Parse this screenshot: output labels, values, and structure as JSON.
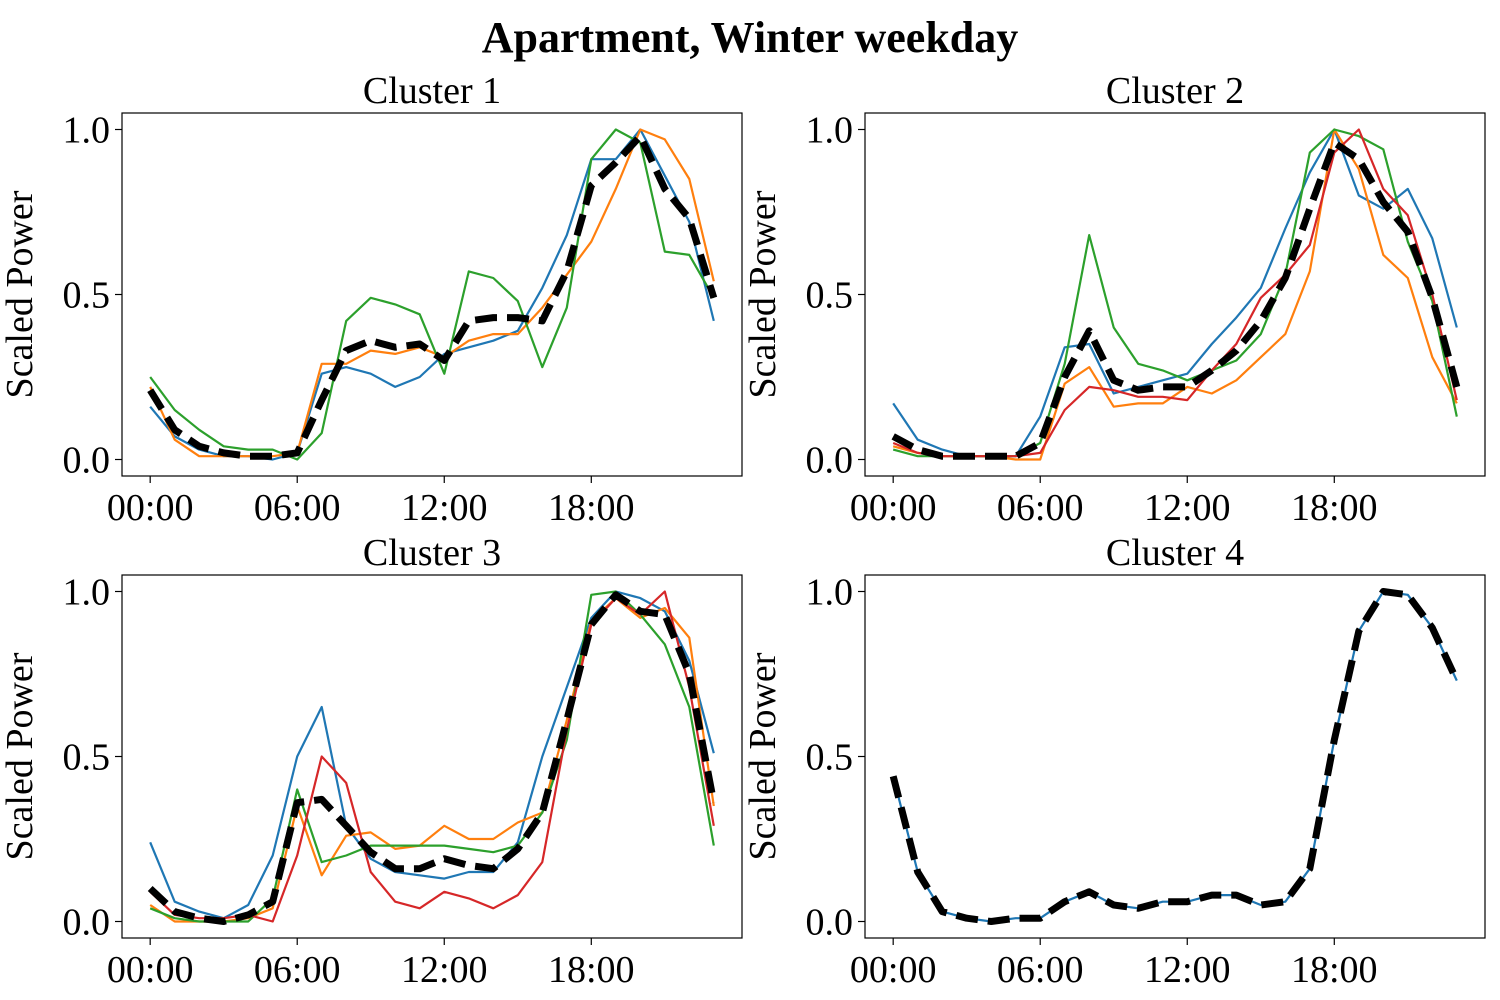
{
  "chart_data": {
    "title": "Apartment, Winter weekday",
    "type": "line",
    "ylabel": "Scaled Power",
    "x_hours": [
      0,
      1,
      2,
      3,
      4,
      5,
      6,
      7,
      8,
      9,
      10,
      11,
      12,
      13,
      14,
      15,
      16,
      17,
      18,
      19,
      20,
      21,
      22,
      23
    ],
    "xticks": [
      {
        "hour": 0,
        "label": "00:00"
      },
      {
        "hour": 6,
        "label": "06:00"
      },
      {
        "hour": 12,
        "label": "12:00"
      },
      {
        "hour": 18,
        "label": "18:00"
      }
    ],
    "yticks": [
      {
        "value": 0.0,
        "label": "0.0"
      },
      {
        "value": 0.5,
        "label": "0.5"
      },
      {
        "value": 1.0,
        "label": "1.0"
      }
    ],
    "ylim": [
      -0.05,
      1.05
    ],
    "xlim": [
      -1.15,
      24.15
    ],
    "grid": false,
    "panels": [
      {
        "title": "Cluster 1",
        "series": [
          {
            "color": "#1f77b4",
            "values": [
              0.16,
              0.07,
              0.03,
              0.01,
              0.01,
              0.0,
              0.02,
              0.26,
              0.28,
              0.26,
              0.22,
              0.25,
              0.32,
              0.34,
              0.36,
              0.39,
              0.52,
              0.68,
              0.91,
              0.91,
              1.0,
              0.86,
              0.72,
              0.42
            ]
          },
          {
            "color": "#ff7f0e",
            "values": [
              0.22,
              0.06,
              0.01,
              0.01,
              0.01,
              0.01,
              0.02,
              0.29,
              0.29,
              0.33,
              0.32,
              0.34,
              0.31,
              0.36,
              0.38,
              0.38,
              0.46,
              0.56,
              0.66,
              0.82,
              1.0,
              0.97,
              0.85,
              0.54
            ]
          },
          {
            "color": "#2ca02c",
            "values": [
              0.25,
              0.15,
              0.09,
              0.04,
              0.03,
              0.03,
              0.0,
              0.08,
              0.42,
              0.49,
              0.47,
              0.44,
              0.26,
              0.57,
              0.55,
              0.48,
              0.28,
              0.46,
              0.91,
              1.0,
              0.96,
              0.63,
              0.62,
              0.49
            ]
          }
        ],
        "mean": [
          0.21,
          0.09,
          0.04,
          0.02,
          0.01,
          0.01,
          0.02,
          0.18,
          0.33,
          0.36,
          0.34,
          0.35,
          0.3,
          0.42,
          0.43,
          0.43,
          0.42,
          0.57,
          0.83,
          0.9,
          0.98,
          0.82,
          0.73,
          0.49
        ]
      },
      {
        "title": "Cluster 2",
        "series": [
          {
            "color": "#1f77b4",
            "values": [
              0.17,
              0.06,
              0.03,
              0.01,
              0.01,
              0.01,
              0.13,
              0.34,
              0.35,
              0.2,
              0.22,
              0.24,
              0.26,
              0.35,
              0.43,
              0.52,
              0.7,
              0.87,
              1.0,
              0.8,
              0.76,
              0.82,
              0.67,
              0.4
            ]
          },
          {
            "color": "#ff7f0e",
            "values": [
              0.04,
              0.02,
              0.01,
              0.01,
              0.01,
              0.0,
              0.0,
              0.23,
              0.28,
              0.16,
              0.17,
              0.17,
              0.22,
              0.2,
              0.24,
              0.31,
              0.38,
              0.57,
              1.0,
              0.88,
              0.62,
              0.55,
              0.31,
              0.17
            ]
          },
          {
            "color": "#2ca02c",
            "values": [
              0.03,
              0.01,
              0.01,
              0.01,
              0.01,
              0.01,
              0.05,
              0.29,
              0.68,
              0.4,
              0.29,
              0.27,
              0.24,
              0.27,
              0.3,
              0.38,
              0.56,
              0.93,
              1.0,
              0.98,
              0.94,
              0.66,
              0.48,
              0.13
            ]
          },
          {
            "color": "#d62728",
            "values": [
              0.05,
              0.02,
              0.01,
              0.01,
              0.01,
              0.01,
              0.02,
              0.15,
              0.22,
              0.21,
              0.19,
              0.19,
              0.18,
              0.27,
              0.35,
              0.49,
              0.56,
              0.65,
              0.93,
              1.0,
              0.82,
              0.74,
              0.5,
              0.18
            ]
          }
        ],
        "mean": [
          0.07,
          0.03,
          0.01,
          0.01,
          0.01,
          0.01,
          0.05,
          0.25,
          0.39,
          0.24,
          0.21,
          0.22,
          0.22,
          0.27,
          0.33,
          0.42,
          0.55,
          0.76,
          0.96,
          0.91,
          0.78,
          0.69,
          0.49,
          0.22
        ]
      },
      {
        "title": "Cluster 3",
        "series": [
          {
            "color": "#1f77b4",
            "values": [
              0.24,
              0.06,
              0.03,
              0.01,
              0.05,
              0.2,
              0.5,
              0.65,
              0.29,
              0.19,
              0.15,
              0.14,
              0.13,
              0.15,
              0.15,
              0.24,
              0.5,
              0.71,
              0.92,
              1.0,
              0.98,
              0.94,
              0.79,
              0.51
            ]
          },
          {
            "color": "#ff7f0e",
            "values": [
              0.05,
              0.0,
              0.0,
              0.0,
              0.01,
              0.04,
              0.35,
              0.14,
              0.26,
              0.27,
              0.22,
              0.23,
              0.29,
              0.25,
              0.25,
              0.3,
              0.33,
              0.61,
              0.91,
              0.98,
              0.92,
              0.95,
              0.86,
              0.35
            ]
          },
          {
            "color": "#2ca02c",
            "values": [
              0.04,
              0.01,
              0.0,
              0.0,
              0.0,
              0.07,
              0.4,
              0.18,
              0.2,
              0.23,
              0.23,
              0.23,
              0.23,
              0.22,
              0.21,
              0.23,
              0.33,
              0.55,
              0.99,
              1.0,
              0.93,
              0.84,
              0.65,
              0.23
            ]
          },
          {
            "color": "#d62728",
            "values": [
              0.09,
              0.02,
              0.01,
              0.01,
              0.02,
              0.0,
              0.2,
              0.5,
              0.42,
              0.15,
              0.06,
              0.04,
              0.09,
              0.07,
              0.04,
              0.08,
              0.18,
              0.58,
              0.9,
              0.98,
              0.93,
              1.0,
              0.71,
              0.29
            ]
          }
        ],
        "mean": [
          0.1,
          0.03,
          0.01,
          0.0,
          0.02,
          0.06,
          0.36,
          0.37,
          0.29,
          0.21,
          0.16,
          0.16,
          0.19,
          0.17,
          0.16,
          0.22,
          0.33,
          0.61,
          0.9,
          0.99,
          0.94,
          0.93,
          0.75,
          0.36
        ]
      },
      {
        "title": "Cluster 4",
        "series": [
          {
            "color": "#1f77b4",
            "values": [
              0.44,
              0.15,
              0.03,
              0.01,
              0.0,
              0.01,
              0.01,
              0.06,
              0.09,
              0.05,
              0.04,
              0.06,
              0.06,
              0.08,
              0.08,
              0.05,
              0.06,
              0.16,
              0.55,
              0.88,
              1.0,
              0.99,
              0.89,
              0.73
            ]
          }
        ],
        "mean": [
          0.44,
          0.15,
          0.03,
          0.01,
          0.0,
          0.01,
          0.01,
          0.06,
          0.09,
          0.05,
          0.04,
          0.06,
          0.06,
          0.08,
          0.08,
          0.05,
          0.06,
          0.16,
          0.55,
          0.88,
          1.0,
          0.99,
          0.89,
          0.73
        ]
      }
    ]
  }
}
